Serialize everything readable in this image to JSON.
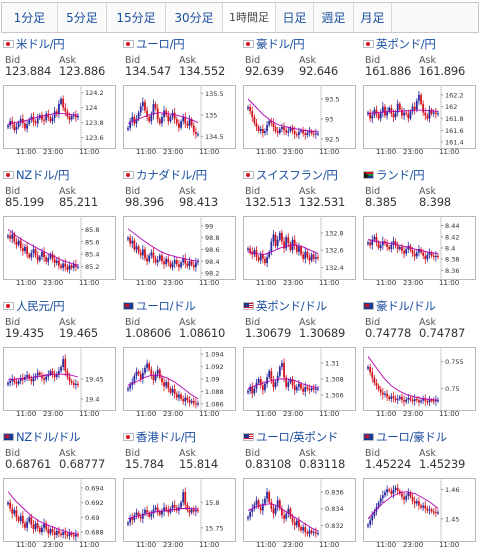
{
  "tabs": [
    {
      "label": "1分足"
    },
    {
      "label": "5分足"
    },
    {
      "label": "15分足"
    },
    {
      "label": "30分足"
    },
    {
      "label": "1時間足"
    },
    {
      "label": "日足"
    },
    {
      "label": "週足"
    },
    {
      "label": "月足"
    }
  ],
  "active_tab": 4,
  "labels": {
    "bid": "Bid",
    "ask": "Ask"
  },
  "time_axis": [
    "11:00",
    "23:00",
    "11:00"
  ],
  "colors": {
    "up": "#2a2a9f",
    "down": "#d2141e",
    "ma": "#b400b4",
    "link": "#1a4ea0"
  },
  "pairs": [
    {
      "name": "米ドル/円",
      "flag": "flag-red",
      "bid": "123.884",
      "ask": "123.886"
    },
    {
      "name": "ユーロ/円",
      "flag": "flag-red",
      "bid": "134.547",
      "ask": "134.552"
    },
    {
      "name": "豪ドル/円",
      "flag": "flag-red",
      "bid": "92.639",
      "ask": "92.646"
    },
    {
      "name": "英ポンド/円",
      "flag": "flag-red",
      "bid": "161.886",
      "ask": "161.896"
    },
    {
      "name": "NZドル/円",
      "flag": "flag-red",
      "bid": "85.199",
      "ask": "85.211"
    },
    {
      "name": "カナダドル/円",
      "flag": "flag-red",
      "bid": "98.396",
      "ask": "98.413"
    },
    {
      "name": "スイスフラン/円",
      "flag": "flag-red",
      "bid": "132.513",
      "ask": "132.531"
    },
    {
      "name": "ランド/円",
      "flag": "flag-za",
      "bid": "8.385",
      "ask": "8.398"
    },
    {
      "name": "人民元/円",
      "flag": "flag-red",
      "bid": "19.435",
      "ask": "19.465"
    },
    {
      "name": "ユーロ/ドル",
      "flag": "flag-blue",
      "bid": "1.08606",
      "ask": "1.08610"
    },
    {
      "name": "英ポンド/ドル",
      "flag": "flag-us",
      "bid": "1.30679",
      "ask": "1.30689"
    },
    {
      "name": "豪ドル/ドル",
      "flag": "flag-blue",
      "bid": "0.74778",
      "ask": "0.74787"
    },
    {
      "name": "NZドル/ドル",
      "flag": "flag-blue",
      "bid": "0.68761",
      "ask": "0.68777"
    },
    {
      "name": "香港ドル/円",
      "flag": "flag-red",
      "bid": "15.784",
      "ask": "15.814"
    },
    {
      "name": "ユーロ/英ポンド",
      "flag": "flag-us",
      "bid": "0.83108",
      "ask": "0.83118"
    },
    {
      "name": "ユーロ/豪ドル",
      "flag": "flag-blue",
      "bid": "1.45224",
      "ask": "1.45239"
    }
  ],
  "chart_data": [
    {
      "type": "candlestick",
      "pair": "米ドル/円",
      "yticks": [
        "124.2",
        "124",
        "123.8",
        "123.6"
      ],
      "ylim": [
        123.5,
        124.25
      ],
      "closes": [
        123.76,
        123.82,
        123.78,
        123.7,
        123.74,
        123.8,
        123.85,
        123.79,
        123.72,
        123.78,
        123.84,
        123.88,
        123.81,
        123.79,
        123.86,
        123.9,
        123.84,
        123.83,
        123.92,
        123.87,
        123.82,
        123.86,
        123.95,
        123.91,
        124.05,
        124.12,
        124.0,
        123.95,
        123.88,
        123.84,
        123.89,
        123.9,
        123.87,
        123.89
      ],
      "ma": [
        123.78,
        123.8,
        123.82,
        123.85,
        123.88,
        123.9,
        123.92,
        123.92,
        123.91,
        123.9
      ]
    },
    {
      "type": "candlestick",
      "pair": "ユーロ/円",
      "yticks": [
        "135.5",
        "135",
        "134.5"
      ],
      "ylim": [
        134.3,
        135.6
      ],
      "closes": [
        134.7,
        134.85,
        134.95,
        134.8,
        134.9,
        135.05,
        135.2,
        135.3,
        135.1,
        134.95,
        134.85,
        135.0,
        135.25,
        135.15,
        134.9,
        134.8,
        134.95,
        135.1,
        135.0,
        134.85,
        134.95,
        135.05,
        134.9,
        134.8,
        134.7,
        134.85,
        134.95,
        134.8,
        134.75,
        134.9,
        134.75,
        134.6,
        134.55,
        134.55
      ],
      "ma": [
        134.8,
        134.88,
        134.95,
        135.02,
        135.05,
        135.03,
        135.0,
        134.96,
        134.9,
        134.82
      ]
    },
    {
      "type": "candlestick",
      "pair": "豪ドル/円",
      "yticks": [
        "93.5",
        "93",
        "92.5"
      ],
      "ylim": [
        92.35,
        93.75
      ],
      "closes": [
        93.3,
        93.2,
        93.05,
        92.9,
        92.8,
        92.7,
        92.75,
        92.65,
        92.7,
        92.85,
        92.95,
        92.9,
        92.8,
        92.7,
        92.65,
        92.75,
        92.8,
        92.72,
        92.66,
        92.7,
        92.78,
        92.7,
        92.62,
        92.6,
        92.68,
        92.72,
        92.64,
        92.6,
        92.66,
        92.7,
        92.64,
        92.62,
        92.64,
        92.64
      ],
      "ma": [
        93.5,
        93.3,
        93.1,
        92.95,
        92.85,
        92.8,
        92.76,
        92.72,
        92.7,
        92.68
      ]
    },
    {
      "type": "candlestick",
      "pair": "英ポンド/円",
      "yticks": [
        "162.2",
        "162",
        "161.8",
        "161.6",
        "161.4"
      ],
      "ylim": [
        161.35,
        162.3
      ],
      "closes": [
        161.9,
        161.8,
        161.85,
        161.95,
        161.88,
        161.8,
        161.9,
        162.0,
        161.85,
        161.92,
        161.98,
        161.88,
        161.82,
        161.9,
        162.05,
        161.95,
        161.85,
        161.9,
        161.88,
        161.8,
        161.92,
        162.0,
        161.95,
        162.1,
        162.2,
        162.05,
        161.9,
        161.85,
        161.8,
        161.95,
        161.88,
        161.9,
        161.88,
        161.89
      ],
      "ma": [
        161.88,
        161.9,
        161.91,
        161.92,
        161.92,
        161.93,
        161.94,
        161.94,
        161.93,
        161.92
      ]
    },
    {
      "type": "candlestick",
      "pair": "NZドル/円",
      "yticks": [
        "85.8",
        "85.6",
        "85.4",
        "85.2"
      ],
      "ylim": [
        85.05,
        85.95
      ],
      "closes": [
        85.7,
        85.65,
        85.72,
        85.6,
        85.55,
        85.62,
        85.5,
        85.45,
        85.52,
        85.4,
        85.35,
        85.42,
        85.48,
        85.38,
        85.3,
        85.36,
        85.44,
        85.35,
        85.28,
        85.34,
        85.4,
        85.32,
        85.26,
        85.3,
        85.22,
        85.18,
        85.25,
        85.2,
        85.15,
        85.22,
        85.18,
        85.24,
        85.2,
        85.2
      ],
      "ma": [
        85.8,
        85.7,
        85.62,
        85.55,
        85.48,
        85.42,
        85.36,
        85.3,
        85.26,
        85.22
      ]
    },
    {
      "type": "candlestick",
      "pair": "カナダドル/円",
      "yticks": [
        "99",
        "98.8",
        "98.6",
        "98.4",
        "98.2"
      ],
      "ylim": [
        98.15,
        99.1
      ],
      "closes": [
        98.8,
        98.7,
        98.75,
        98.6,
        98.65,
        98.55,
        98.5,
        98.6,
        98.45,
        98.4,
        98.5,
        98.55,
        98.45,
        98.38,
        98.42,
        98.5,
        98.4,
        98.35,
        98.44,
        98.38,
        98.3,
        98.36,
        98.42,
        98.35,
        98.3,
        98.38,
        98.45,
        98.36,
        98.32,
        98.4,
        98.34,
        98.3,
        98.38,
        98.4
      ],
      "ma": [
        98.95,
        98.85,
        98.75,
        98.66,
        98.58,
        98.52,
        98.48,
        98.45,
        98.42,
        98.4
      ]
    },
    {
      "type": "candlestick",
      "pair": "スイスフラン/円",
      "yticks": [
        "132.8",
        "132.6",
        "132.4"
      ],
      "ylim": [
        132.3,
        132.95
      ],
      "closes": [
        132.62,
        132.58,
        132.55,
        132.6,
        132.52,
        132.48,
        132.55,
        132.5,
        132.45,
        132.52,
        132.58,
        132.7,
        132.78,
        132.65,
        132.72,
        132.8,
        132.7,
        132.62,
        132.75,
        132.68,
        132.6,
        132.72,
        132.66,
        132.58,
        132.64,
        132.55,
        132.5,
        132.58,
        132.52,
        132.48,
        132.55,
        132.5,
        132.52,
        132.51
      ],
      "ma": [
        132.58,
        132.56,
        132.55,
        132.58,
        132.62,
        132.65,
        132.66,
        132.64,
        132.6,
        132.56
      ]
    },
    {
      "type": "candlestick",
      "pair": "ランド/円",
      "yticks": [
        "8.44",
        "8.42",
        "8.4",
        "8.38",
        "8.36"
      ],
      "ylim": [
        8.35,
        8.45
      ],
      "closes": [
        8.41,
        8.405,
        8.415,
        8.42,
        8.41,
        8.4,
        8.405,
        8.412,
        8.408,
        8.402,
        8.398,
        8.406,
        8.412,
        8.404,
        8.398,
        8.402,
        8.395,
        8.39,
        8.398,
        8.404,
        8.396,
        8.39,
        8.385,
        8.392,
        8.398,
        8.392,
        8.386,
        8.38,
        8.388,
        8.392,
        8.386,
        8.384,
        8.386,
        8.385
      ],
      "ma": [
        8.415,
        8.412,
        8.41,
        8.408,
        8.405,
        8.402,
        8.398,
        8.395,
        8.392,
        8.39
      ]
    },
    {
      "type": "candlestick",
      "pair": "人民元/円",
      "yticks": [
        "19.45",
        "19.4"
      ],
      "ylim": [
        19.38,
        19.52
      ],
      "closes": [
        19.44,
        19.445,
        19.45,
        19.442,
        19.438,
        19.445,
        19.452,
        19.448,
        19.455,
        19.46,
        19.45,
        19.444,
        19.452,
        19.458,
        19.466,
        19.46,
        19.452,
        19.448,
        19.456,
        19.462,
        19.47,
        19.46,
        19.455,
        19.462,
        19.47,
        19.48,
        19.5,
        19.47,
        19.455,
        19.445,
        19.44,
        19.435,
        19.438,
        19.435
      ],
      "ma": [
        19.448,
        19.45,
        19.452,
        19.454,
        19.456,
        19.46,
        19.462,
        19.462,
        19.46,
        19.455
      ]
    },
    {
      "type": "candlestick",
      "pair": "ユーロ/ドル",
      "yticks": [
        "1.094",
        "1.092",
        "1.09",
        "1.088",
        "1.086"
      ],
      "ylim": [
        1.0855,
        1.0945
      ],
      "closes": [
        1.0885,
        1.089,
        1.0895,
        1.0905,
        1.0912,
        1.0908,
        1.09,
        1.091,
        1.0918,
        1.0925,
        1.0915,
        1.0905,
        1.0898,
        1.0908,
        1.0915,
        1.0902,
        1.0895,
        1.0888,
        1.0895,
        1.0885,
        1.0878,
        1.0884,
        1.0876,
        1.087,
        1.0875,
        1.0868,
        1.0864,
        1.087,
        1.0866,
        1.0862,
        1.0865,
        1.0861,
        1.086,
        1.0861
      ],
      "ma": [
        1.089,
        1.0895,
        1.0902,
        1.0906,
        1.0906,
        1.0902,
        1.0895,
        1.0886,
        1.0876,
        1.0868
      ]
    },
    {
      "type": "candlestick",
      "pair": "英ポンド/ドル",
      "yticks": [
        "1.31",
        "1.308",
        "1.306"
      ],
      "ylim": [
        1.3045,
        1.3115
      ],
      "closes": [
        1.3065,
        1.307,
        1.3062,
        1.3068,
        1.3075,
        1.308,
        1.3072,
        1.3066,
        1.3074,
        1.3082,
        1.309,
        1.3078,
        1.307,
        1.3076,
        1.3084,
        1.3095,
        1.31,
        1.3082,
        1.307,
        1.3076,
        1.308,
        1.3072,
        1.3066,
        1.307,
        1.3074,
        1.3068,
        1.3064,
        1.307,
        1.3068,
        1.3066,
        1.3069,
        1.3067,
        1.3068,
        1.3068
      ],
      "ma": [
        1.3068,
        1.3072,
        1.3075,
        1.3078,
        1.308,
        1.308,
        1.3078,
        1.3074,
        1.3071,
        1.3069
      ]
    },
    {
      "type": "candlestick",
      "pair": "豪ドル/ドル",
      "yticks": [
        "0.755",
        "0.75"
      ],
      "ylim": [
        0.7465,
        0.757
      ],
      "closes": [
        0.754,
        0.753,
        0.752,
        0.751,
        0.7505,
        0.7498,
        0.7492,
        0.7488,
        0.749,
        0.7484,
        0.748,
        0.7485,
        0.7482,
        0.7478,
        0.748,
        0.7484,
        0.7478,
        0.7475,
        0.7479,
        0.7482,
        0.7478,
        0.7476,
        0.748,
        0.7478,
        0.7474,
        0.7477,
        0.748,
        0.7476,
        0.7474,
        0.7478,
        0.7477,
        0.7476,
        0.7478,
        0.7478
      ],
      "ma": [
        0.756,
        0.754,
        0.752,
        0.7505,
        0.7495,
        0.7488,
        0.7484,
        0.7481,
        0.7479,
        0.7478
      ]
    },
    {
      "type": "candlestick",
      "pair": "NZドル/ドル",
      "yticks": [
        "0.694",
        "0.692",
        "0.69",
        "0.688"
      ],
      "ylim": [
        0.6872,
        0.6948
      ],
      "closes": [
        0.692,
        0.6912,
        0.6905,
        0.691,
        0.69,
        0.6895,
        0.6902,
        0.6892,
        0.6886,
        0.6894,
        0.69,
        0.689,
        0.6884,
        0.6892,
        0.6886,
        0.688,
        0.6886,
        0.6892,
        0.6884,
        0.6878,
        0.6884,
        0.688,
        0.6876,
        0.6882,
        0.6878,
        0.6876,
        0.688,
        0.6877,
        0.6875,
        0.6879,
        0.6876,
        0.6874,
        0.6877,
        0.6876
      ],
      "ma": [
        0.6935,
        0.6922,
        0.6912,
        0.6902,
        0.6895,
        0.689,
        0.6886,
        0.6882,
        0.6879,
        0.6877
      ]
    },
    {
      "type": "candlestick",
      "pair": "香港ドル/円",
      "yticks": [
        "15.8",
        "15.75"
      ],
      "ylim": [
        15.73,
        15.84
      ],
      "closes": [
        15.76,
        15.77,
        15.765,
        15.775,
        15.78,
        15.772,
        15.768,
        15.778,
        15.785,
        15.78,
        15.772,
        15.778,
        15.786,
        15.79,
        15.782,
        15.776,
        15.782,
        15.79,
        15.786,
        15.78,
        15.788,
        15.795,
        15.79,
        15.784,
        15.79,
        15.8,
        15.82,
        15.795,
        15.785,
        15.78,
        15.786,
        15.782,
        15.785,
        15.784
      ],
      "ma": [
        15.768,
        15.772,
        15.776,
        15.78,
        15.782,
        15.784,
        15.786,
        15.788,
        15.788,
        15.787
      ]
    },
    {
      "type": "candlestick",
      "pair": "ユーロ/英ポンド",
      "yticks": [
        "0.836",
        "0.834",
        "0.832"
      ],
      "ylim": [
        0.8305,
        0.8372
      ],
      "closes": [
        0.833,
        0.8336,
        0.834,
        0.8345,
        0.835,
        0.8342,
        0.8338,
        0.8346,
        0.8352,
        0.836,
        0.8348,
        0.834,
        0.8334,
        0.8342,
        0.835,
        0.834,
        0.8332,
        0.8328,
        0.8334,
        0.834,
        0.833,
        0.8324,
        0.832,
        0.8326,
        0.8318,
        0.8314,
        0.8318,
        0.8312,
        0.831,
        0.8314,
        0.8311,
        0.8312,
        0.8311,
        0.8311
      ],
      "ma": [
        0.8338,
        0.8342,
        0.8345,
        0.8346,
        0.8342,
        0.8336,
        0.833,
        0.8324,
        0.8318,
        0.8313
      ]
    },
    {
      "type": "candlestick",
      "pair": "ユーロ/豪ドル",
      "yticks": [
        "1.46",
        "1.45"
      ],
      "ylim": [
        1.4435,
        1.4625
      ],
      "closes": [
        1.448,
        1.4495,
        1.451,
        1.4525,
        1.454,
        1.4555,
        1.457,
        1.458,
        1.459,
        1.46,
        1.4595,
        1.4585,
        1.4598,
        1.4605,
        1.4595,
        1.4585,
        1.4575,
        1.4565,
        1.4578,
        1.459,
        1.4575,
        1.456,
        1.4552,
        1.456,
        1.4545,
        1.4538,
        1.4545,
        1.4535,
        1.4528,
        1.4532,
        1.4525,
        1.4524,
        1.4522,
        1.4522
      ],
      "ma": [
        1.45,
        1.453,
        1.4555,
        1.4575,
        1.4588,
        1.4592,
        1.4586,
        1.4572,
        1.4556,
        1.4535
      ]
    }
  ]
}
